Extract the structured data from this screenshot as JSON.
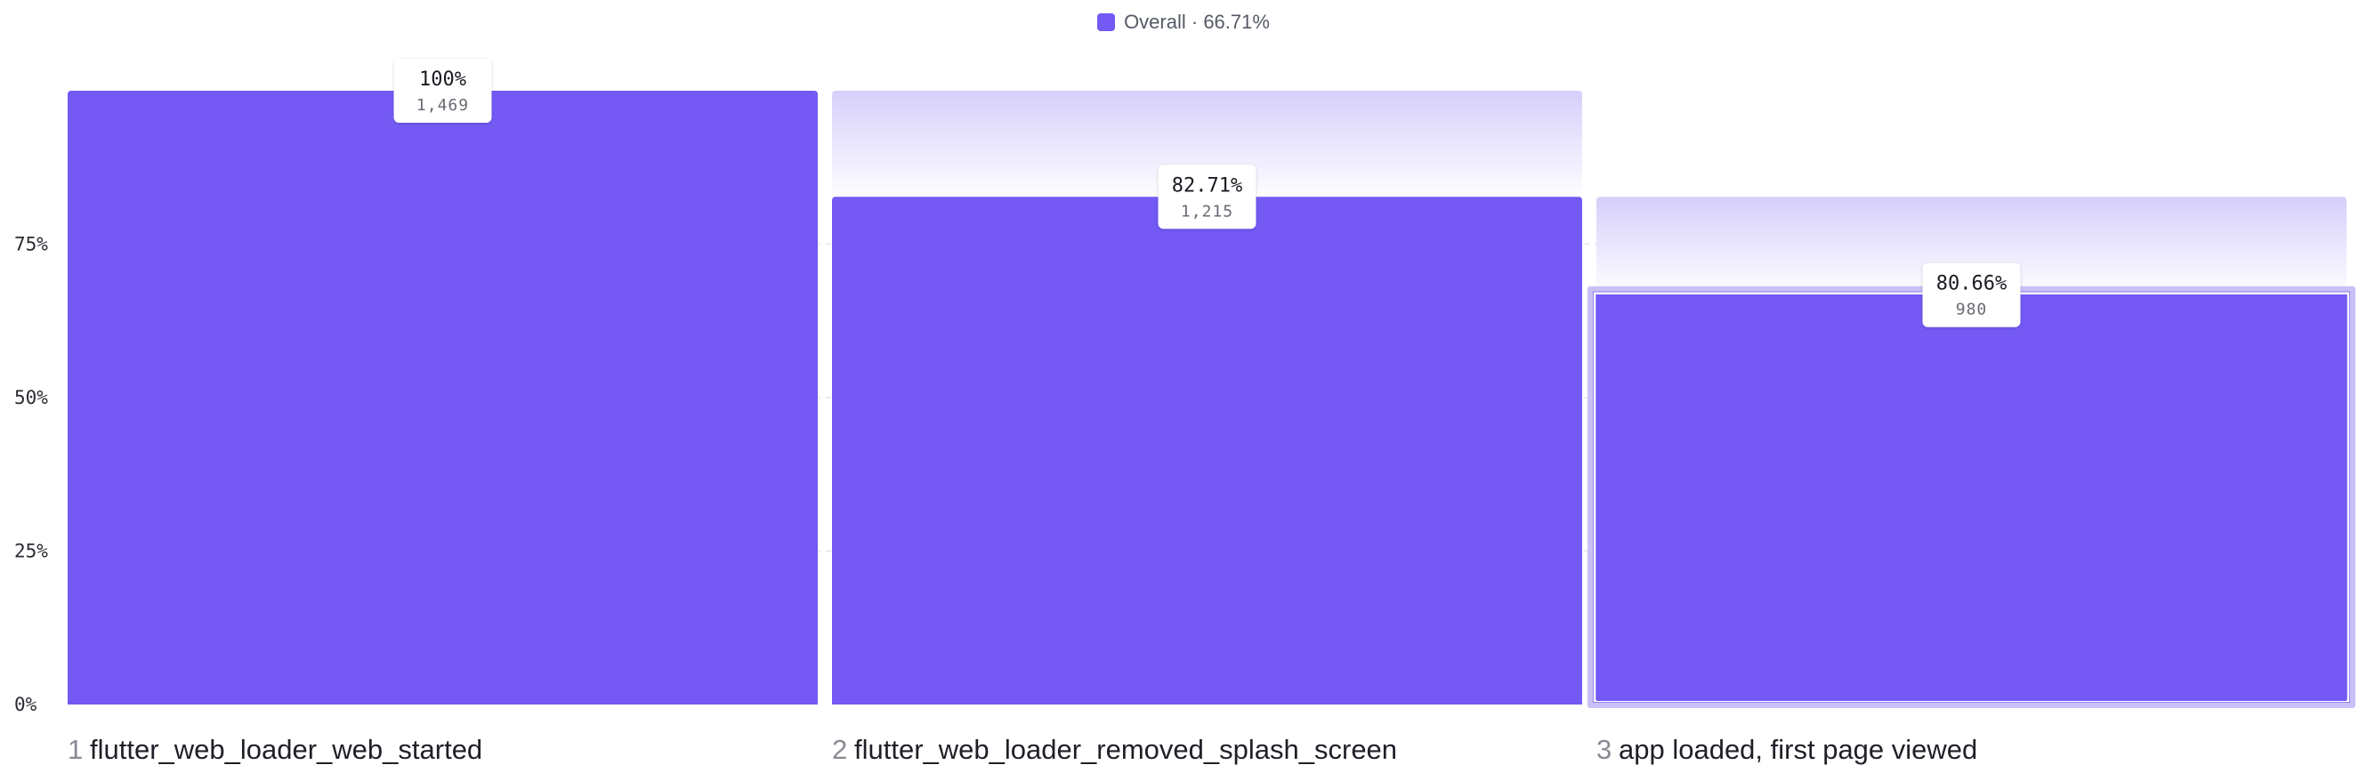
{
  "legend": {
    "series_name": "Overall",
    "summary": "66.71%",
    "separator": " · "
  },
  "colors": {
    "bar": "#7459f5",
    "dropoff": "#d9d3fb",
    "selected_outline": "#c9c1f7",
    "grid": "#e6e6ec"
  },
  "chart_data": {
    "type": "bar",
    "ylim": [
      0,
      100
    ],
    "y_ticks": [
      {
        "value": 0,
        "label": "0%"
      },
      {
        "value": 25,
        "label": "25%"
      },
      {
        "value": 50,
        "label": "50%"
      },
      {
        "value": 75,
        "label": "75%"
      }
    ],
    "grid": true,
    "series": [
      {
        "name": "Overall",
        "overall_conversion": "66.71%"
      }
    ],
    "steps": [
      {
        "number": "1",
        "name": "flutter_web_loader_web_started",
        "value": 100,
        "prev_value": 100,
        "pct_label": "100%",
        "count_label": "1,469",
        "selected": false
      },
      {
        "number": "2",
        "name": "flutter_web_loader_removed_splash_screen",
        "value": 82.71,
        "prev_value": 100,
        "pct_label": "82.71%",
        "count_label": "1,215",
        "selected": false
      },
      {
        "number": "3",
        "name": "app loaded, first page viewed",
        "value": 66.71,
        "prev_value": 82.71,
        "pct_label": "80.66%",
        "count_label": "980",
        "selected": true
      }
    ]
  }
}
